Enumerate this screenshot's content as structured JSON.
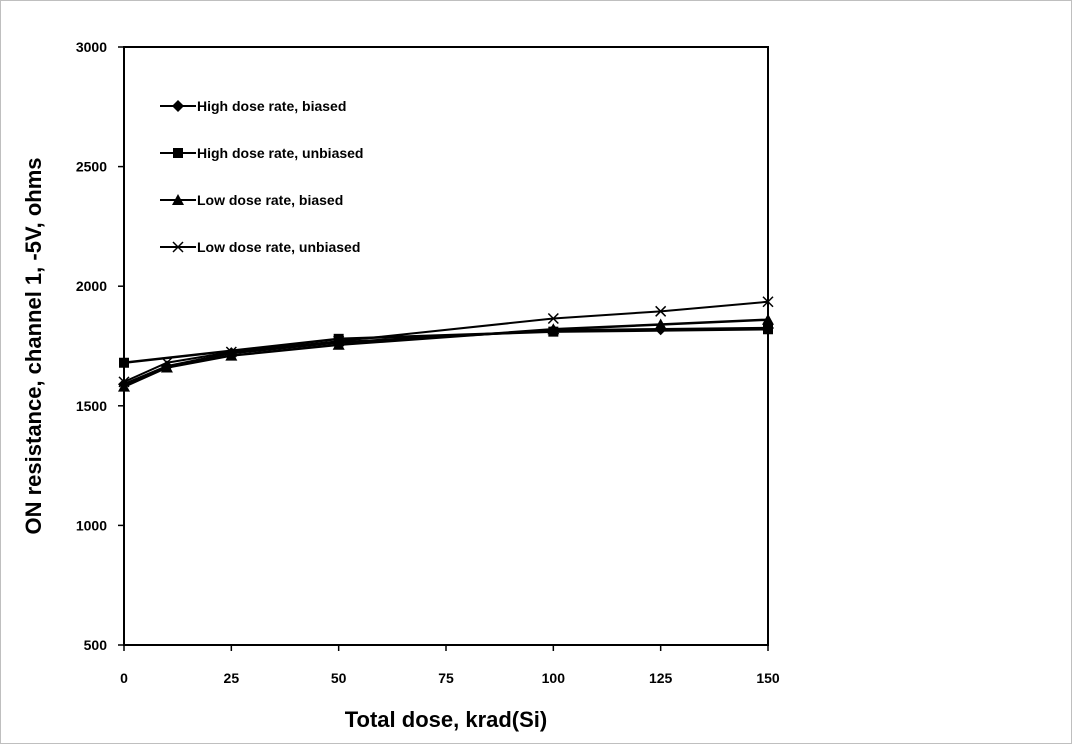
{
  "chart_data": {
    "type": "line",
    "title": "",
    "xlabel": "Total dose, krad(Si)",
    "ylabel": "ON resistance, channel 1, -5V, ohms",
    "xlim": [
      0,
      150
    ],
    "ylim": [
      500,
      3000
    ],
    "xticks": [
      0,
      25,
      50,
      75,
      100,
      125,
      150
    ],
    "yticks": [
      500,
      1000,
      1500,
      2000,
      2500,
      3000
    ],
    "grid": false,
    "legend_position": "top-left, inside plot",
    "series": [
      {
        "name": "High dose rate, biased",
        "marker": "diamond",
        "x": [
          0,
          10,
          25,
          50,
          100,
          125,
          150
        ],
        "y": [
          1590,
          1665,
          1720,
          1765,
          1815,
          1820,
          1825
        ]
      },
      {
        "name": "High dose rate, unbiased",
        "marker": "square",
        "x": [
          0,
          50,
          100,
          150
        ],
        "y": [
          1680,
          1780,
          1810,
          1820
        ]
      },
      {
        "name": "Low dose rate, biased",
        "marker": "triangle",
        "x": [
          0,
          10,
          25,
          50,
          100,
          125,
          150
        ],
        "y": [
          1580,
          1660,
          1710,
          1755,
          1820,
          1840,
          1860
        ]
      },
      {
        "name": "Low dose rate, unbiased",
        "marker": "x",
        "x": [
          0,
          10,
          25,
          50,
          100,
          125,
          150
        ],
        "y": [
          1600,
          1680,
          1725,
          1770,
          1865,
          1895,
          1935
        ]
      }
    ]
  }
}
